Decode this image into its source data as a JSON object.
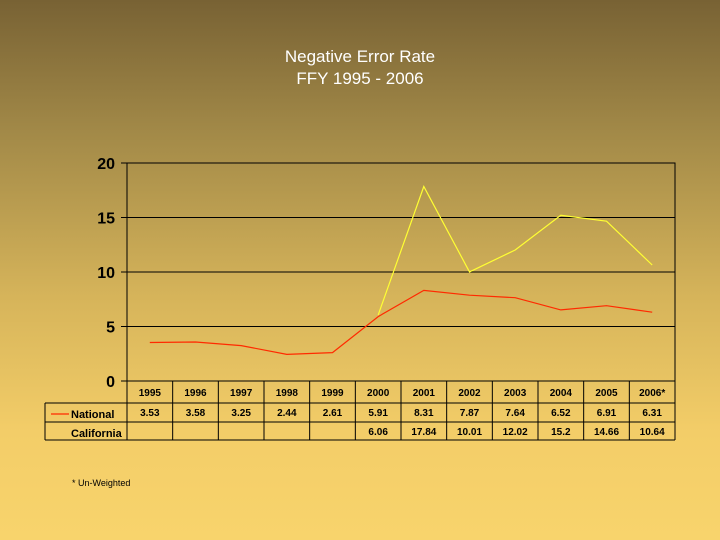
{
  "title_line1": "Negative Error Rate",
  "title_line2": "FFY 1995 - 2006",
  "footnote": "* Un-Weighted",
  "chart_data": {
    "type": "line",
    "categories": [
      "1995",
      "1996",
      "1997",
      "1998",
      "1999",
      "2000",
      "2001",
      "2002",
      "2003",
      "2004",
      "2005",
      "2006*"
    ],
    "ylim": [
      0,
      20
    ],
    "yticks": [
      0,
      5,
      10,
      15,
      20
    ],
    "grid": true,
    "legend": "data-table-left",
    "series": [
      {
        "name": "National",
        "color": "#ff2a00",
        "values": [
          3.53,
          3.58,
          3.25,
          2.44,
          2.61,
          5.91,
          8.31,
          7.87,
          7.64,
          6.52,
          6.91,
          6.31
        ],
        "labels": [
          "3.53",
          "3.58",
          "3.25",
          "2.44",
          "2.61",
          "5.91",
          "8.31",
          "7.87",
          "7.64",
          "6.52",
          "6.91",
          "6.31"
        ]
      },
      {
        "name": "California",
        "color": "#ffff33",
        "values": [
          null,
          null,
          null,
          null,
          null,
          6.06,
          17.84,
          10.01,
          12.02,
          15.2,
          14.66,
          10.64
        ],
        "labels": [
          "",
          "",
          "",
          "",
          "",
          "6.06",
          "17.84",
          "10.01",
          "12.02",
          "15.2",
          "14.66",
          "10.64"
        ]
      }
    ]
  }
}
